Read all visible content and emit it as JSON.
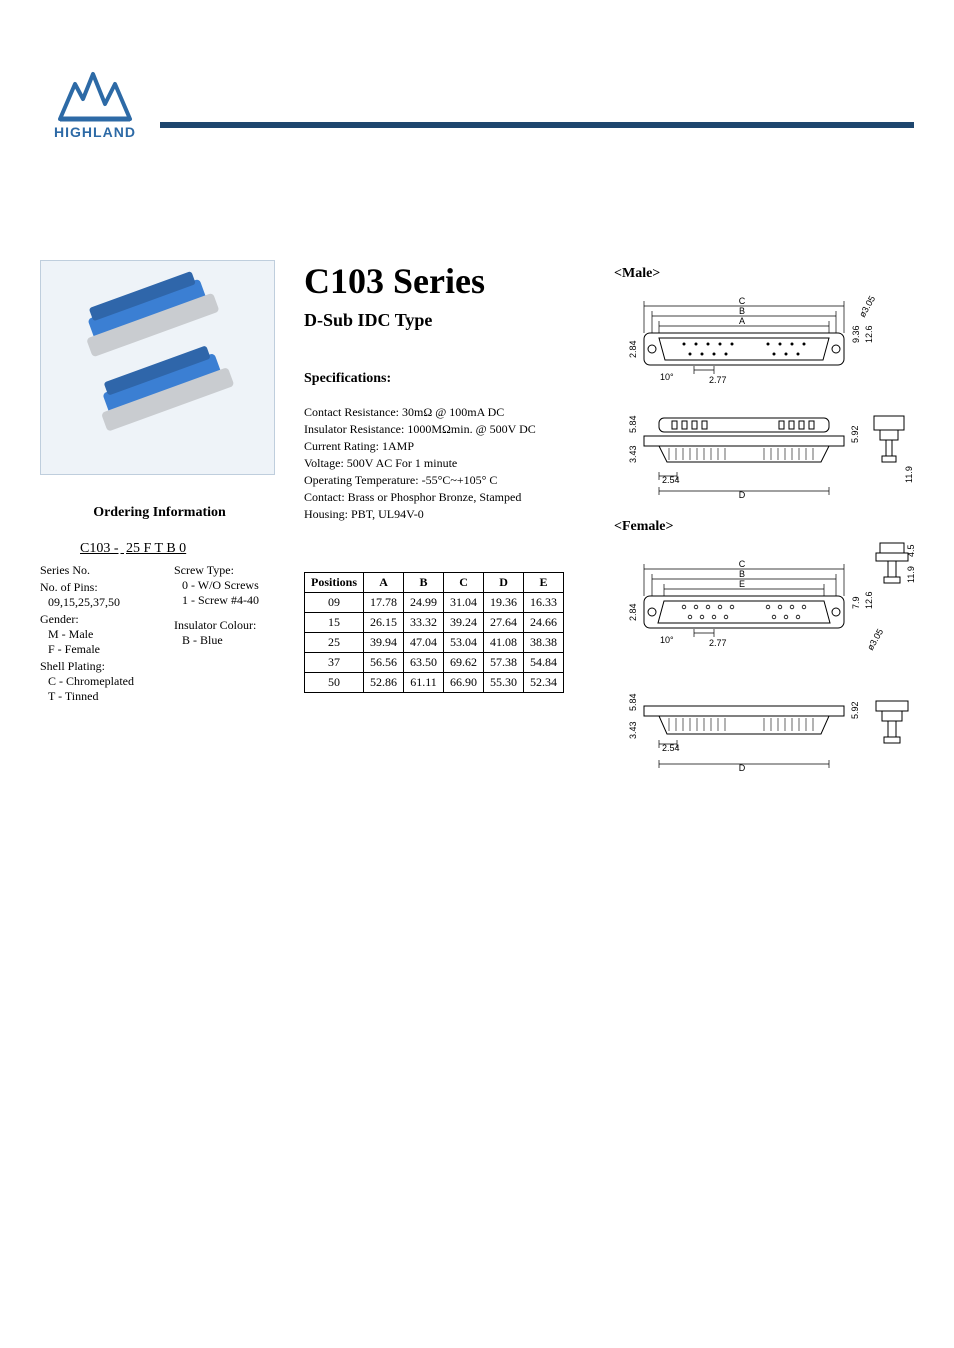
{
  "brand": {
    "name": "HIGHLAND",
    "logo_color": "#2d6aa6",
    "rule_color": "#1e466e"
  },
  "title": "C103 Series",
  "subtitle": "D-Sub IDC Type",
  "ordering": {
    "heading": "Ordering Information",
    "part_number_prefix": "C103 -",
    "part_number_example": "25 F T B 0",
    "fields": [
      {
        "label": "Series No."
      },
      {
        "label": "No. of Pins:",
        "options": [
          "09,15,25,37,50"
        ]
      },
      {
        "label": "Gender:",
        "options": [
          "M - Male",
          "F - Female"
        ]
      },
      {
        "label": "Shell Plating:",
        "options": [
          "C - Chromeplated",
          "T - Tinned"
        ]
      }
    ],
    "right_fields": [
      {
        "label": "Screw Type:",
        "options": [
          "0 - W/O Screws",
          "1 - Screw #4-40"
        ]
      },
      {
        "label": "Insulator Colour:",
        "options": [
          "B - Blue"
        ]
      }
    ]
  },
  "specs": {
    "heading": "Specifications:",
    "lines": [
      "Contact Resistance: 30mΩ @ 100mA DC",
      "Insulator Resistance: 1000MΩmin.  @ 500V DC",
      "Current Rating: 1AMP",
      "Voltage: 500V AC For 1 minute",
      "Operating Temperature: -55°C~+105° C",
      "Contact: Brass or Phosphor Bronze, Stamped",
      "Housing: PBT, UL94V-0"
    ]
  },
  "dim_table": {
    "columns": [
      "Positions",
      "A",
      "B",
      "C",
      "D",
      "E"
    ],
    "rows": [
      [
        "09",
        "17.78",
        "24.99",
        "31.04",
        "19.36",
        "16.33"
      ],
      [
        "15",
        "26.15",
        "33.32",
        "39.24",
        "27.64",
        "24.66"
      ],
      [
        "25",
        "39.94",
        "47.04",
        "53.04",
        "41.08",
        "38.38"
      ],
      [
        "37",
        "56.56",
        "63.50",
        "69.62",
        "57.38",
        "54.84"
      ],
      [
        "50",
        "52.86",
        "61.11",
        "66.90",
        "55.30",
        "52.34"
      ]
    ]
  },
  "drawings": {
    "male_label": "<Male>",
    "female_label": "<Female>",
    "dims": {
      "A": "A",
      "B": "B",
      "C": "C",
      "D": "D",
      "E": "E",
      "d277": "2.77",
      "d284": "2.84",
      "d936": "9.36",
      "d126": "12.6",
      "d305": "ø3.05",
      "d10": "10°",
      "d254": "2.54",
      "d343": "3.43",
      "d584": "5.84",
      "d592": "5.92",
      "d119": "11.9",
      "d45": "4.5",
      "d79": "7.9"
    },
    "stroke": "#000000",
    "fill_shell": "#ffffff"
  },
  "photo": {
    "border": "#bfcedd",
    "bg": "#eef3f8",
    "body_color": "#3b7fd3",
    "metal_color": "#c9ccd0"
  }
}
